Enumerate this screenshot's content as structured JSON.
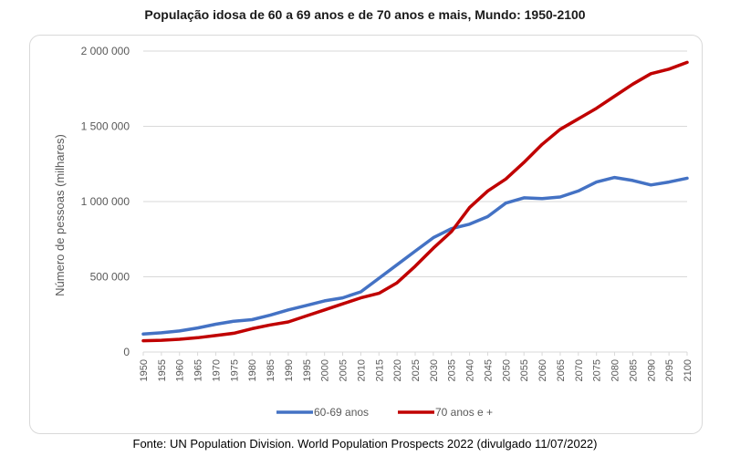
{
  "title": "População idosa de 60 a 69 anos e de 70 anos e mais, Mundo: 1950-2100",
  "source": "Fonte: UN Population Division. World Population Prospects 2022 (divulgado 11/07/2022)",
  "colors": {
    "series_60_69": "#4472C4",
    "series_70_plus": "#C00000",
    "grid": "#d9d9d9",
    "frame": "#d9d9d9"
  },
  "chart_data": {
    "type": "line",
    "ylabel": "Número de pessoas (milhares)",
    "xlabel": "",
    "ylim": [
      0,
      2000000
    ],
    "yticks": [
      0,
      500000,
      1000000,
      1500000,
      2000000
    ],
    "ytick_labels": [
      "0",
      "500 000",
      "1 000 000",
      "1 500 000",
      "2 000 000"
    ],
    "xticks": [
      1950,
      1955,
      1960,
      1965,
      1970,
      1975,
      1980,
      1985,
      1990,
      1995,
      2000,
      2005,
      2010,
      2015,
      2020,
      2025,
      2030,
      2035,
      2040,
      2045,
      2050,
      2055,
      2060,
      2065,
      2070,
      2075,
      2080,
      2085,
      2090,
      2095,
      2100
    ],
    "grid": "horizontal",
    "legend_position": "bottom",
    "x": [
      1950,
      1955,
      1960,
      1965,
      1970,
      1975,
      1980,
      1985,
      1990,
      1995,
      2000,
      2005,
      2010,
      2015,
      2020,
      2025,
      2030,
      2035,
      2040,
      2045,
      2050,
      2055,
      2060,
      2065,
      2070,
      2075,
      2080,
      2085,
      2090,
      2095,
      2100
    ],
    "series": [
      {
        "name": "60-69 anos",
        "values": [
          120000,
          128000,
          140000,
          160000,
          185000,
          205000,
          215000,
          245000,
          280000,
          310000,
          340000,
          360000,
          400000,
          490000,
          580000,
          670000,
          760000,
          820000,
          850000,
          900000,
          990000,
          1025000,
          1020000,
          1030000,
          1070000,
          1130000,
          1160000,
          1140000,
          1110000,
          1130000,
          1155000
        ]
      },
      {
        "name": "70 anos e +",
        "values": [
          75000,
          78000,
          85000,
          95000,
          110000,
          125000,
          155000,
          180000,
          200000,
          240000,
          280000,
          320000,
          360000,
          390000,
          460000,
          570000,
          690000,
          800000,
          960000,
          1070000,
          1150000,
          1260000,
          1380000,
          1480000,
          1550000,
          1620000,
          1700000,
          1780000,
          1850000,
          1880000,
          1925000
        ]
      }
    ]
  }
}
